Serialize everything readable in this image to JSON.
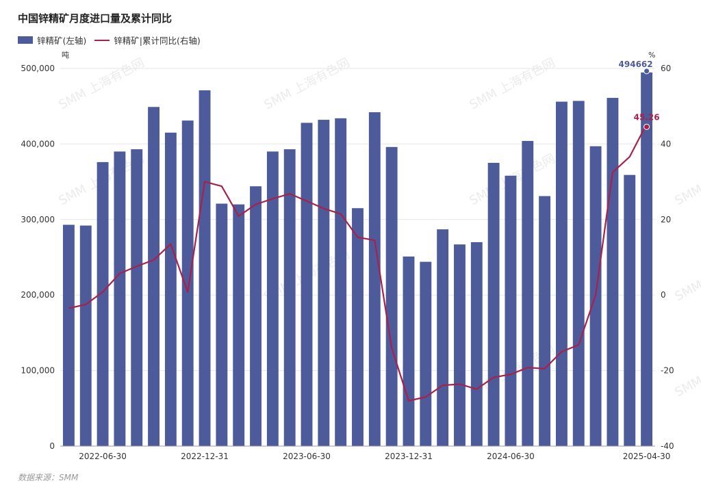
{
  "title": "中国锌精矿月度进口量及累计同比",
  "legend": {
    "bar": "锌精矿(左轴)",
    "line": "锌精矿|累计同比(右轴)"
  },
  "source": "数据来源：SMM",
  "watermark": "SMM 上海有色网",
  "colors": {
    "bar": "#4e5b9b",
    "line": "#a8214a",
    "grid": "#e6e6e6"
  },
  "chart_data": {
    "type": "bar",
    "y_left": {
      "unit": "吨",
      "range": [
        0,
        500000
      ],
      "ticks": [
        "0",
        "100,000",
        "200,000",
        "300,000",
        "400,000",
        "500,000"
      ]
    },
    "y_right": {
      "unit": "%",
      "range": [
        -40,
        60
      ],
      "ticks": [
        "-40",
        "-20",
        "0",
        "20",
        "40",
        "60"
      ]
    },
    "x_tick_labels": [
      "2022-06-30",
      "2022-12-31",
      "2023-06-30",
      "2023-12-31",
      "2024-06-30",
      "2025-04-30"
    ],
    "x_tick_index": [
      2,
      8,
      14,
      20,
      26,
      34
    ],
    "series": [
      {
        "name": "锌精矿(左轴)",
        "type": "bar",
        "axis": "left",
        "values": [
          293000,
          292000,
          376000,
          390000,
          393000,
          449000,
          415000,
          431000,
          471000,
          321000,
          320000,
          344000,
          390000,
          393000,
          428000,
          432000,
          434000,
          315000,
          442000,
          396000,
          251000,
          244000,
          287000,
          267000,
          270000,
          375000,
          358000,
          404000,
          331000,
          456000,
          457000,
          397000,
          461000,
          359000,
          494662
        ]
      },
      {
        "name": "锌精矿|累计同比(右轴)",
        "type": "line",
        "axis": "right",
        "values": [
          -3.5,
          -2.5,
          0.8,
          5.7,
          7.6,
          9.3,
          13.5,
          0.8,
          30.0,
          28.8,
          20.9,
          24.0,
          25.5,
          26.8,
          24.9,
          22.9,
          21.5,
          15.3,
          14.5,
          -14.0,
          -28.0,
          -27.0,
          -23.9,
          -23.6,
          -24.9,
          -21.8,
          -21.0,
          -19.2,
          -19.5,
          -15.0,
          -13.2,
          0.0,
          32.5,
          36.6,
          45.26
        ]
      }
    ],
    "data_labels": {
      "bar_last": "494662",
      "line_last": "45.26"
    },
    "grid": true,
    "legend_position": "top-left"
  }
}
